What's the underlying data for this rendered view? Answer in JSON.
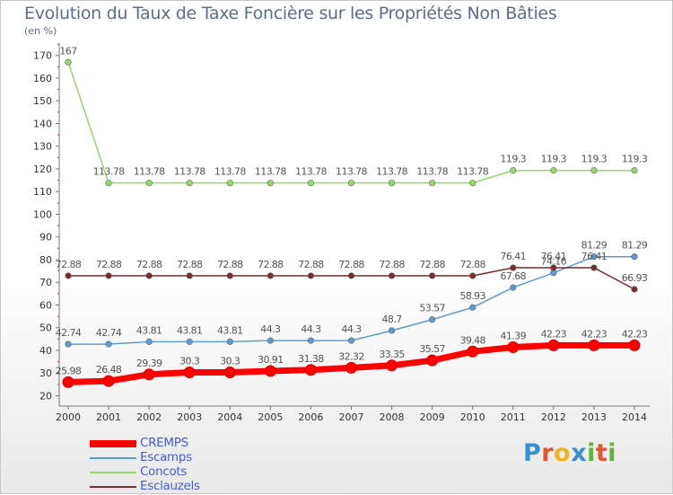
{
  "title": "Evolution du Taux de Taxe Foncière sur les Propriétés Non Bâties",
  "unit_label": "(en %)",
  "logo": {
    "letters": [
      "P",
      "r",
      "o",
      "x",
      "i",
      "t",
      "i"
    ],
    "colors": [
      "#3a8fd0",
      "#e8532c",
      "#f2b21d",
      "#3a8fd0",
      "#62b33a",
      "#e8532c",
      "#62b33a"
    ]
  },
  "chart_data": {
    "type": "line",
    "title": "Evolution du Taux de Taxe Foncière sur les Propriétés Non Bâties",
    "ylabel": "(en %)",
    "xlabel": "",
    "ylim": [
      20,
      175
    ],
    "yticks": [
      20,
      30,
      40,
      50,
      60,
      70,
      80,
      90,
      100,
      110,
      120,
      130,
      140,
      150,
      160,
      170
    ],
    "categories": [
      "2000",
      "2001",
      "2002",
      "2003",
      "2004",
      "2005",
      "2006",
      "2007",
      "2008",
      "2009",
      "2010",
      "2011",
      "2012",
      "2013",
      "2014"
    ],
    "series": [
      {
        "name": "CREMPS",
        "color": "#ff0000",
        "values": [
          25.98,
          26.48,
          29.39,
          30.3,
          30.3,
          30.91,
          31.38,
          32.32,
          33.35,
          35.57,
          39.48,
          41.39,
          42.23,
          42.23,
          42.23
        ],
        "labels": [
          "25.98",
          "26.48",
          "29.39",
          "30.3",
          "30.3",
          "30.91",
          "31.38",
          "32.32",
          "33.35",
          "35.57",
          "39.48",
          "41.39",
          "42.23",
          "42.23",
          "42.23"
        ]
      },
      {
        "name": "Escamps",
        "color": "#5f9bd3",
        "values": [
          42.74,
          42.74,
          43.81,
          43.81,
          43.81,
          44.3,
          44.3,
          44.3,
          48.7,
          53.57,
          58.93,
          67.68,
          74.16,
          81.29,
          81.29
        ],
        "labels": [
          "42.74",
          "42.74",
          "43.81",
          "43.81",
          "43.81",
          "44.3",
          "44.3",
          "44.3",
          "48.7",
          "53.57",
          "58.93",
          "67.68",
          "74.16",
          "81.29",
          "81.29"
        ]
      },
      {
        "name": "Concots",
        "color": "#94d96a",
        "values": [
          167,
          113.78,
          113.78,
          113.78,
          113.78,
          113.78,
          113.78,
          113.78,
          113.78,
          113.78,
          113.78,
          119.3,
          119.3,
          119.3,
          119.3
        ],
        "labels": [
          "167",
          "113.78",
          "113.78",
          "113.78",
          "113.78",
          "113.78",
          "113.78",
          "113.78",
          "113.78",
          "113.78",
          "113.78",
          "119.3",
          "119.3",
          "119.3",
          "119.3"
        ]
      },
      {
        "name": "Esclauzels",
        "color": "#7b2c2c",
        "values": [
          72.88,
          72.88,
          72.88,
          72.88,
          72.88,
          72.88,
          72.88,
          72.88,
          72.88,
          72.88,
          72.88,
          76.41,
          76.41,
          76.41,
          66.93
        ],
        "labels": [
          "72.88",
          "72.88",
          "72.88",
          "72.88",
          "72.88",
          "72.88",
          "72.88",
          "72.88",
          "72.88",
          "72.88",
          "72.88",
          "76.41",
          "76.41",
          "76.41",
          "66.93"
        ]
      }
    ],
    "legend": [
      "CREMPS",
      "Escamps",
      "Concots",
      "Esclauzels"
    ],
    "legend_position": "bottom-left",
    "grid": false
  }
}
